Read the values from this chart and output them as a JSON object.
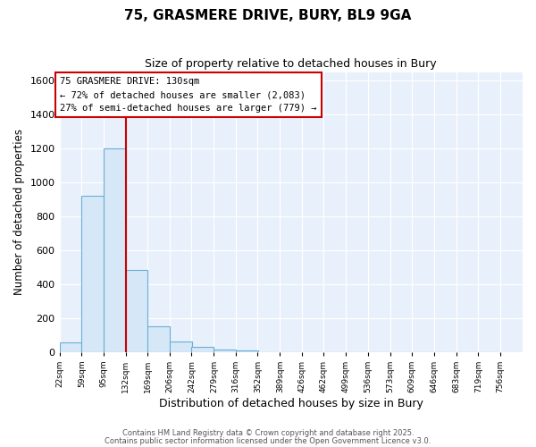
{
  "title": "75, GRASMERE DRIVE, BURY, BL9 9GA",
  "subtitle": "Size of property relative to detached houses in Bury",
  "xlabel": "Distribution of detached houses by size in Bury",
  "ylabel": "Number of detached properties",
  "bar_color": "#d6e8f7",
  "bar_edge_color": "#6aafd6",
  "axes_background_color": "#e8f0fb",
  "figure_background_color": "#ffffff",
  "grid_color": "#ffffff",
  "bin_edges": [
    22,
    59,
    95,
    132,
    169,
    206,
    242,
    279,
    316,
    352,
    389,
    426,
    462,
    499,
    536,
    573,
    609,
    646,
    683,
    719,
    756
  ],
  "bar_heights": [
    55,
    920,
    1200,
    480,
    150,
    60,
    28,
    12,
    8,
    0,
    0,
    0,
    0,
    0,
    0,
    0,
    0,
    0,
    0,
    0
  ],
  "tick_labels": [
    "22sqm",
    "59sqm",
    "95sqm",
    "132sqm",
    "169sqm",
    "206sqm",
    "242sqm",
    "279sqm",
    "316sqm",
    "352sqm",
    "389sqm",
    "426sqm",
    "462sqm",
    "499sqm",
    "536sqm",
    "573sqm",
    "609sqm",
    "646sqm",
    "683sqm",
    "719sqm",
    "756sqm"
  ],
  "property_line_x": 132,
  "property_line_color": "#cc0000",
  "annotation_title": "75 GRASMERE DRIVE: 130sqm",
  "annotation_line1": "← 72% of detached houses are smaller (2,083)",
  "annotation_line2": "27% of semi-detached houses are larger (779) →",
  "annotation_box_facecolor": "#ffffff",
  "annotation_box_edgecolor": "#cc0000",
  "ylim": [
    0,
    1650
  ],
  "yticks": [
    0,
    200,
    400,
    600,
    800,
    1000,
    1200,
    1400,
    1600
  ],
  "footnote1": "Contains HM Land Registry data © Crown copyright and database right 2025.",
  "footnote2": "Contains public sector information licensed under the Open Government Licence v3.0."
}
